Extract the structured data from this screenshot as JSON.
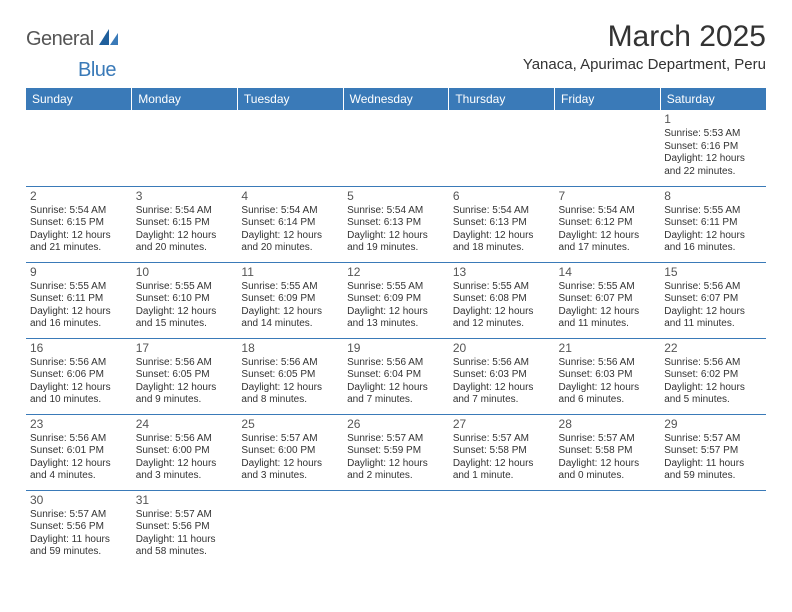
{
  "logo": {
    "part1": "General",
    "part2": "Blue"
  },
  "title": "March 2025",
  "location": "Yanaca, Apurimac Department, Peru",
  "colors": {
    "header_bg": "#3a7ab8",
    "header_fg": "#ffffff",
    "border": "#3a7ab8",
    "logo_gray": "#555555",
    "logo_blue": "#3a7ab8"
  },
  "day_headers": [
    "Sunday",
    "Monday",
    "Tuesday",
    "Wednesday",
    "Thursday",
    "Friday",
    "Saturday"
  ],
  "weeks": [
    [
      null,
      null,
      null,
      null,
      null,
      null,
      {
        "n": "1",
        "sr": "5:53 AM",
        "ss": "6:16 PM",
        "dl": "12 hours and 22 minutes."
      }
    ],
    [
      {
        "n": "2",
        "sr": "5:54 AM",
        "ss": "6:15 PM",
        "dl": "12 hours and 21 minutes."
      },
      {
        "n": "3",
        "sr": "5:54 AM",
        "ss": "6:15 PM",
        "dl": "12 hours and 20 minutes."
      },
      {
        "n": "4",
        "sr": "5:54 AM",
        "ss": "6:14 PM",
        "dl": "12 hours and 20 minutes."
      },
      {
        "n": "5",
        "sr": "5:54 AM",
        "ss": "6:13 PM",
        "dl": "12 hours and 19 minutes."
      },
      {
        "n": "6",
        "sr": "5:54 AM",
        "ss": "6:13 PM",
        "dl": "12 hours and 18 minutes."
      },
      {
        "n": "7",
        "sr": "5:54 AM",
        "ss": "6:12 PM",
        "dl": "12 hours and 17 minutes."
      },
      {
        "n": "8",
        "sr": "5:55 AM",
        "ss": "6:11 PM",
        "dl": "12 hours and 16 minutes."
      }
    ],
    [
      {
        "n": "9",
        "sr": "5:55 AM",
        "ss": "6:11 PM",
        "dl": "12 hours and 16 minutes."
      },
      {
        "n": "10",
        "sr": "5:55 AM",
        "ss": "6:10 PM",
        "dl": "12 hours and 15 minutes."
      },
      {
        "n": "11",
        "sr": "5:55 AM",
        "ss": "6:09 PM",
        "dl": "12 hours and 14 minutes."
      },
      {
        "n": "12",
        "sr": "5:55 AM",
        "ss": "6:09 PM",
        "dl": "12 hours and 13 minutes."
      },
      {
        "n": "13",
        "sr": "5:55 AM",
        "ss": "6:08 PM",
        "dl": "12 hours and 12 minutes."
      },
      {
        "n": "14",
        "sr": "5:55 AM",
        "ss": "6:07 PM",
        "dl": "12 hours and 11 minutes."
      },
      {
        "n": "15",
        "sr": "5:56 AM",
        "ss": "6:07 PM",
        "dl": "12 hours and 11 minutes."
      }
    ],
    [
      {
        "n": "16",
        "sr": "5:56 AM",
        "ss": "6:06 PM",
        "dl": "12 hours and 10 minutes."
      },
      {
        "n": "17",
        "sr": "5:56 AM",
        "ss": "6:05 PM",
        "dl": "12 hours and 9 minutes."
      },
      {
        "n": "18",
        "sr": "5:56 AM",
        "ss": "6:05 PM",
        "dl": "12 hours and 8 minutes."
      },
      {
        "n": "19",
        "sr": "5:56 AM",
        "ss": "6:04 PM",
        "dl": "12 hours and 7 minutes."
      },
      {
        "n": "20",
        "sr": "5:56 AM",
        "ss": "6:03 PM",
        "dl": "12 hours and 7 minutes."
      },
      {
        "n": "21",
        "sr": "5:56 AM",
        "ss": "6:03 PM",
        "dl": "12 hours and 6 minutes."
      },
      {
        "n": "22",
        "sr": "5:56 AM",
        "ss": "6:02 PM",
        "dl": "12 hours and 5 minutes."
      }
    ],
    [
      {
        "n": "23",
        "sr": "5:56 AM",
        "ss": "6:01 PM",
        "dl": "12 hours and 4 minutes."
      },
      {
        "n": "24",
        "sr": "5:56 AM",
        "ss": "6:00 PM",
        "dl": "12 hours and 3 minutes."
      },
      {
        "n": "25",
        "sr": "5:57 AM",
        "ss": "6:00 PM",
        "dl": "12 hours and 3 minutes."
      },
      {
        "n": "26",
        "sr": "5:57 AM",
        "ss": "5:59 PM",
        "dl": "12 hours and 2 minutes."
      },
      {
        "n": "27",
        "sr": "5:57 AM",
        "ss": "5:58 PM",
        "dl": "12 hours and 1 minute."
      },
      {
        "n": "28",
        "sr": "5:57 AM",
        "ss": "5:58 PM",
        "dl": "12 hours and 0 minutes."
      },
      {
        "n": "29",
        "sr": "5:57 AM",
        "ss": "5:57 PM",
        "dl": "11 hours and 59 minutes."
      }
    ],
    [
      {
        "n": "30",
        "sr": "5:57 AM",
        "ss": "5:56 PM",
        "dl": "11 hours and 59 minutes."
      },
      {
        "n": "31",
        "sr": "5:57 AM",
        "ss": "5:56 PM",
        "dl": "11 hours and 58 minutes."
      },
      null,
      null,
      null,
      null,
      null
    ]
  ],
  "labels": {
    "sunrise": "Sunrise:",
    "sunset": "Sunset:",
    "daylight": "Daylight:"
  }
}
